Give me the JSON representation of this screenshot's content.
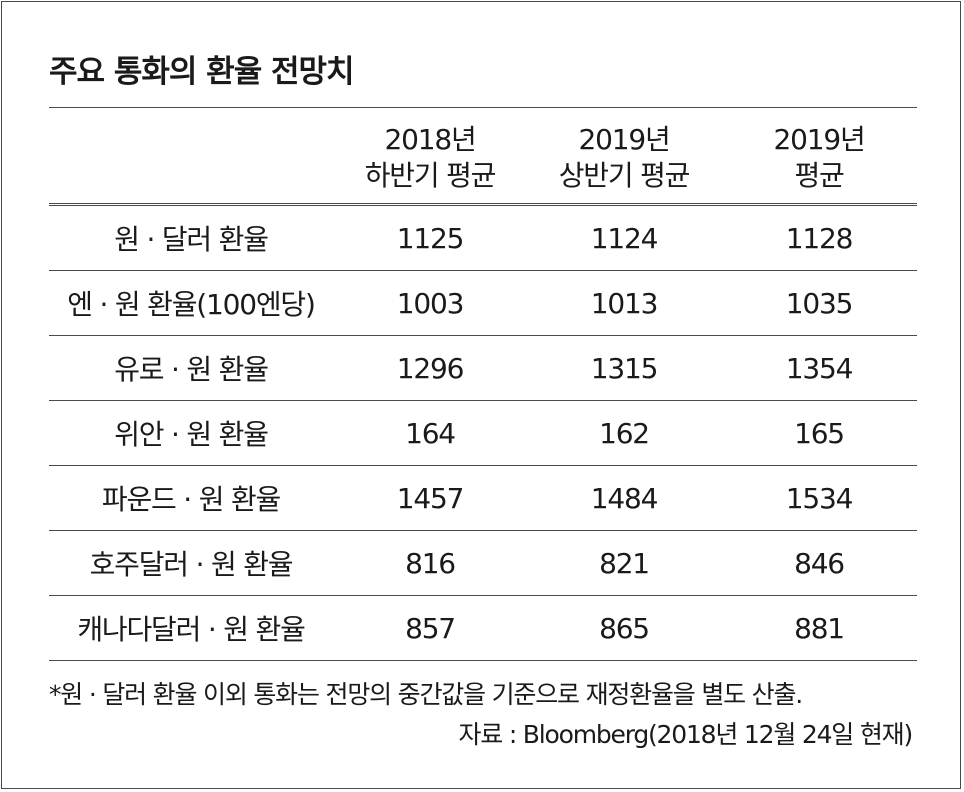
{
  "title": "주요 통화의 환율 전망치",
  "columns": [
    {
      "line1": "",
      "line2": ""
    },
    {
      "line1": "2018년",
      "line2": "하반기 평균"
    },
    {
      "line1": "2019년",
      "line2": "상반기 평균"
    },
    {
      "line1": "2019년",
      "line2": "평균"
    }
  ],
  "rows": [
    [
      "원 · 달러 환율",
      "1125",
      "1124",
      "1128"
    ],
    [
      "엔 · 원 환율(100엔당)",
      "1003",
      "1013",
      "1035"
    ],
    [
      "유로 · 원 환율",
      "1296",
      "1315",
      "1354"
    ],
    [
      "위안 · 원 환율",
      "164",
      "162",
      "165"
    ],
    [
      "파운드 · 원 환율",
      "1457",
      "1484",
      "1534"
    ],
    [
      "호주달러 · 원 환율",
      "816",
      "821",
      "846"
    ],
    [
      "캐나다달러 · 원 환율",
      "857",
      "865",
      "881"
    ]
  ],
  "note": "*원 · 달러 환율 이외 통화는 전망의 중간값을 기준으로 재정환율을 별도 산출.",
  "source": "자료 : Bloomberg(2018년 12월 24일 현재)"
}
